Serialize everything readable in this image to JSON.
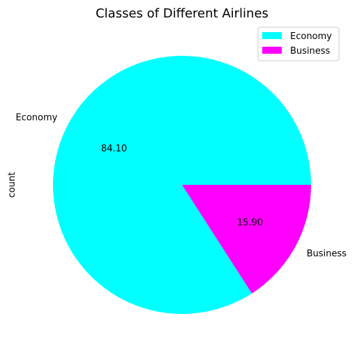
{
  "chart_data": {
    "type": "pie",
    "title": "Classes of Different Airlines",
    "ylabel": "count",
    "labels": [
      "Economy",
      "Business"
    ],
    "values": [
      84.1,
      15.9
    ],
    "value_labels": [
      "84.10",
      "15.90"
    ],
    "colors": [
      "#00ffff",
      "#ff00ff"
    ],
    "legend": {
      "placement": "top-right",
      "entries": [
        "Economy",
        "Business"
      ]
    }
  }
}
